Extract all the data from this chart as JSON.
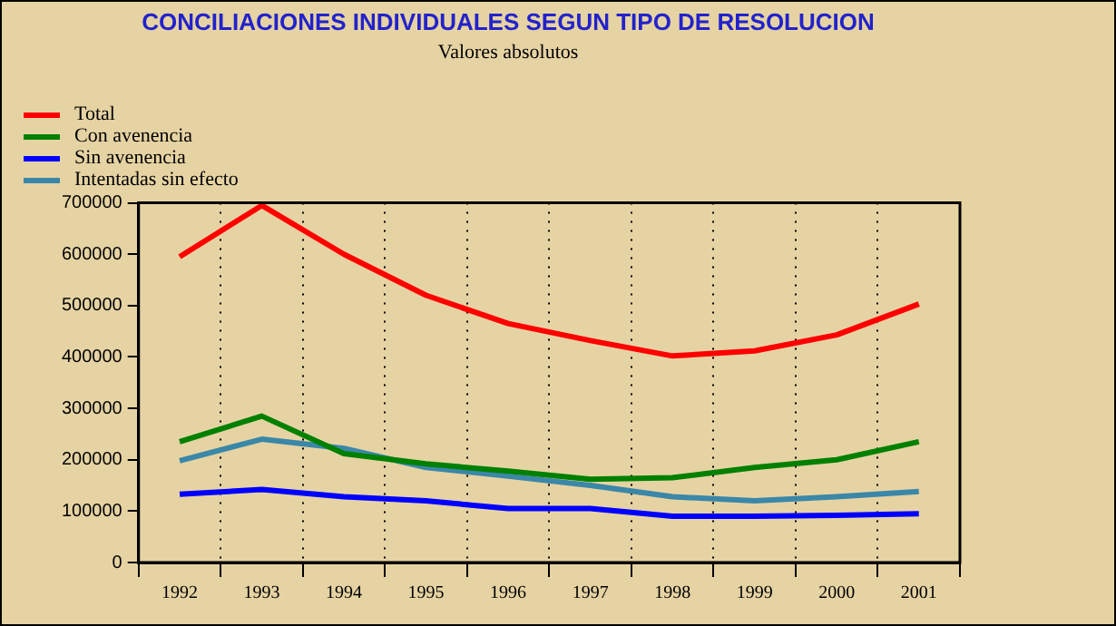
{
  "chart_data": {
    "type": "line",
    "title": "CONCILIACIONES INDIVIDUALES SEGUN TIPO DE RESOLUCION",
    "subtitle": "Valores absolutos",
    "categories": [
      "1992",
      "1993",
      "1994",
      "1995",
      "1996",
      "1997",
      "1998",
      "1999",
      "2000",
      "2001"
    ],
    "series": [
      {
        "name": "Total",
        "color": "#ff0000",
        "values": [
          595000,
          695000,
          600000,
          520000,
          465000,
          432000,
          402000,
          412000,
          443000,
          503000
        ]
      },
      {
        "name": "Con avenencia",
        "color": "#008000",
        "values": [
          235000,
          285000,
          212000,
          192000,
          178000,
          162000,
          165000,
          185000,
          200000,
          235000
        ]
      },
      {
        "name": "Sin avenencia",
        "color": "#0000ff",
        "values": [
          133000,
          142000,
          128000,
          120000,
          105000,
          105000,
          90000,
          90000,
          92000,
          95000
        ]
      },
      {
        "name": "Intentadas sin efecto",
        "color": "#3a87a8",
        "values": [
          198000,
          240000,
          222000,
          185000,
          168000,
          150000,
          128000,
          120000,
          128000,
          138000
        ]
      }
    ],
    "ylim": [
      0,
      700000
    ],
    "yticks": [
      0,
      100000,
      200000,
      300000,
      400000,
      500000,
      600000,
      700000
    ],
    "grid": "x",
    "legend": "top left",
    "marker": "none",
    "line_style": "solid"
  }
}
